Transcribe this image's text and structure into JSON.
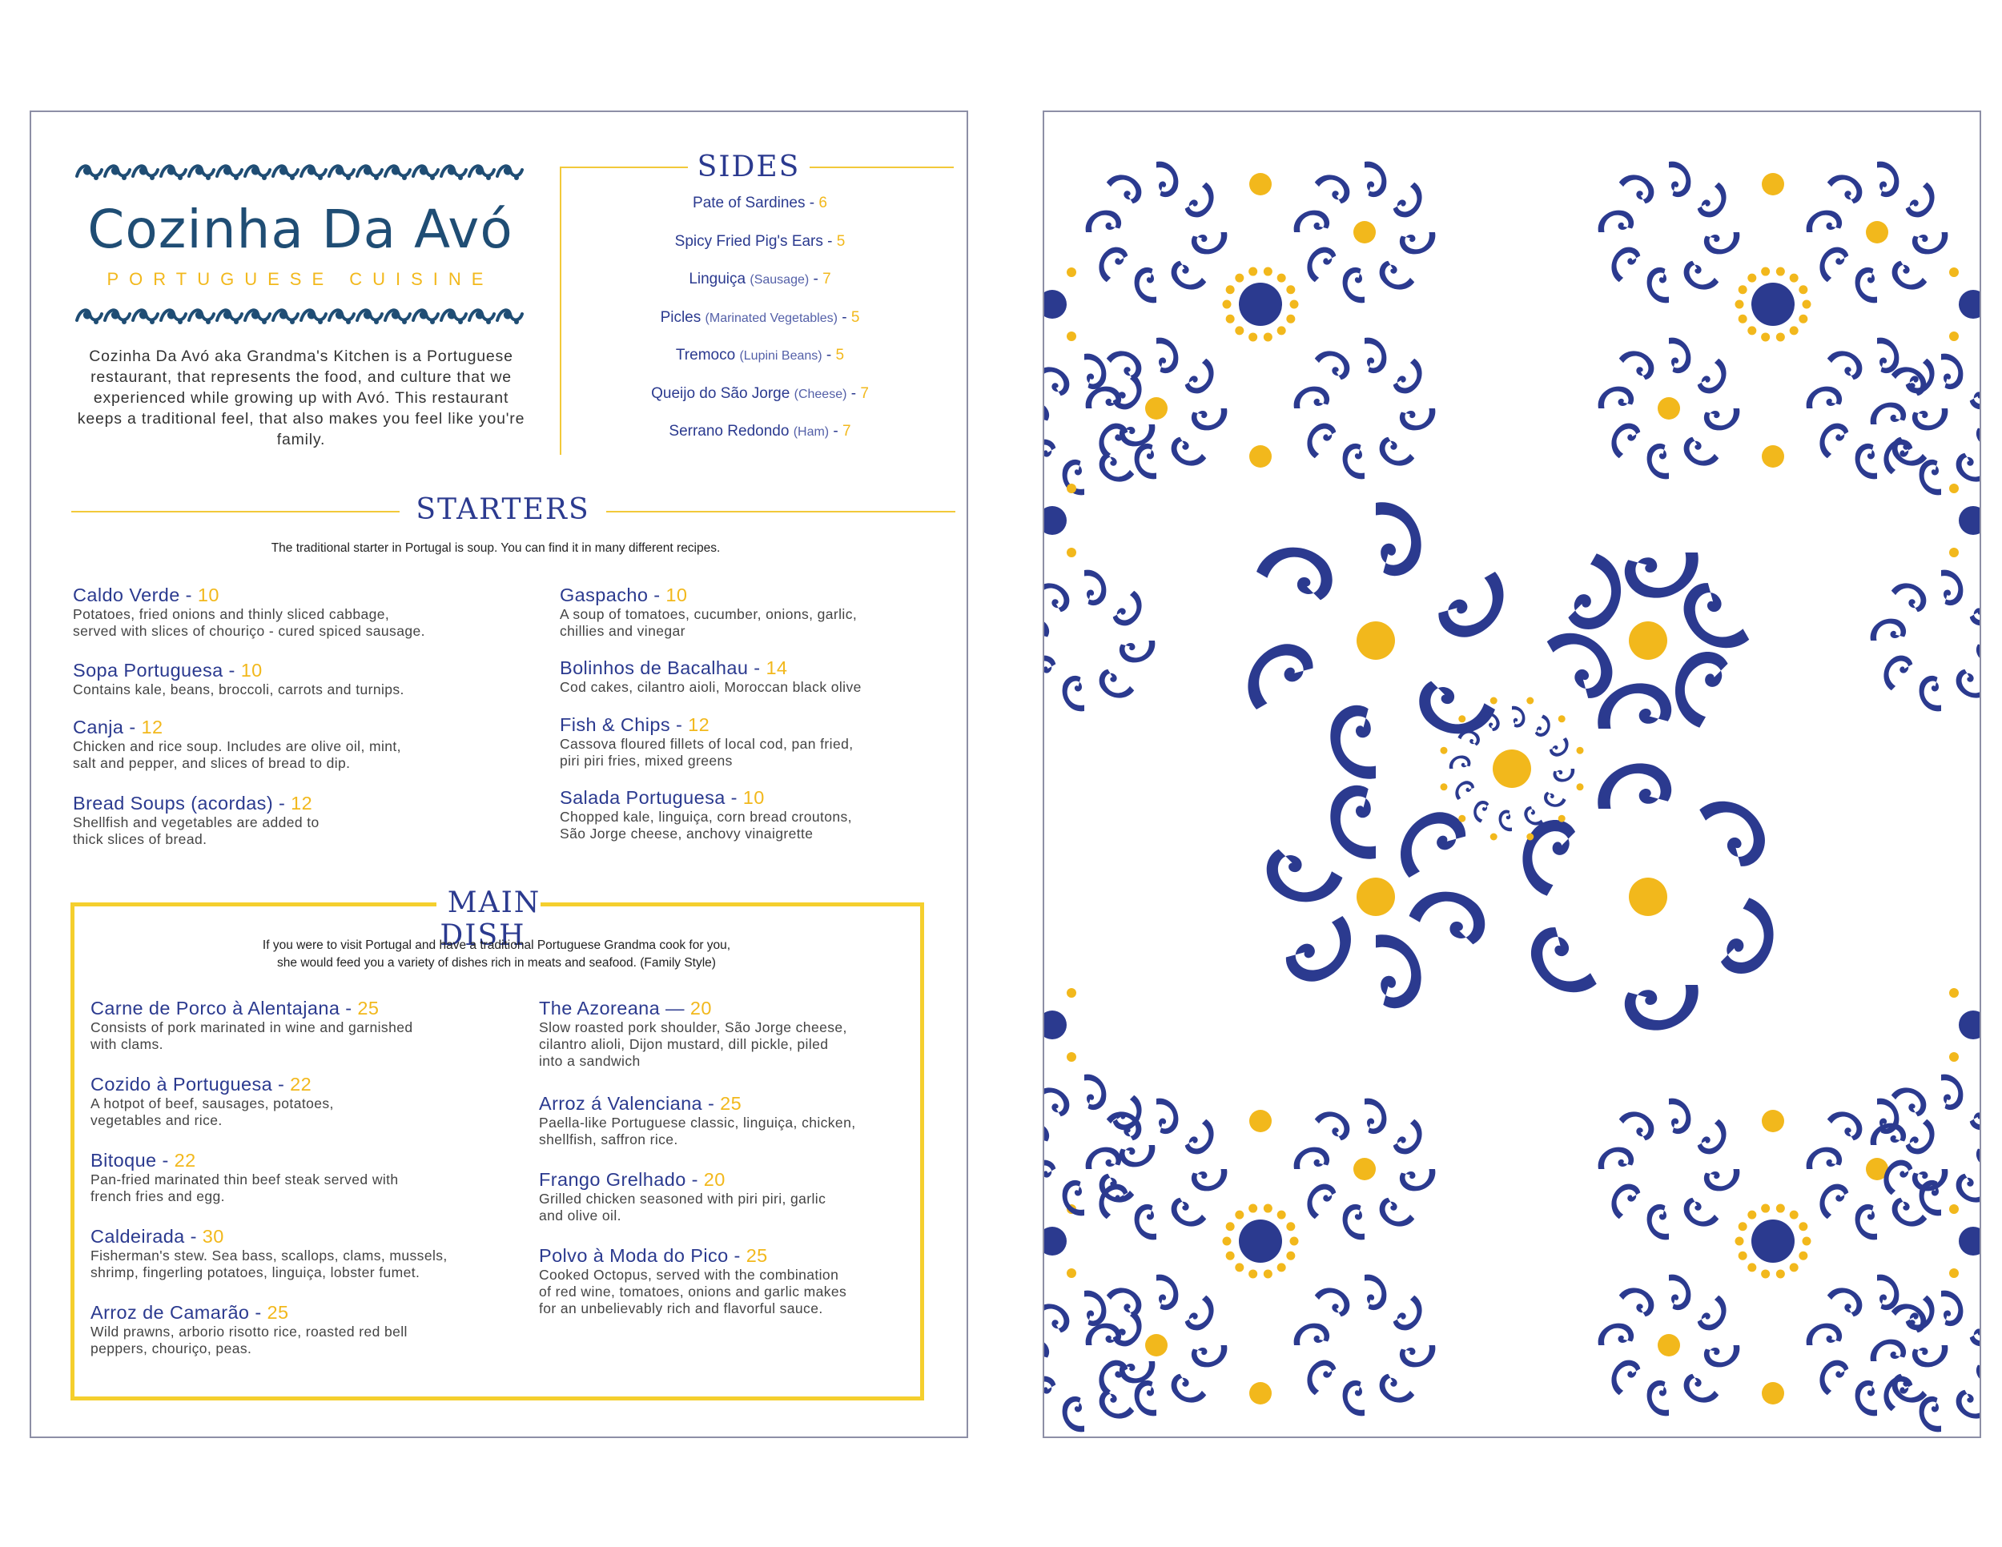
{
  "brand": {
    "title": "Cozinha Da Avó",
    "subtitle": "PORTUGUESE CUISINE",
    "intro": "Cozinha Da Avó aka Grandma's Kitchen is a Portuguese restaurant, that represents the food, and culture that we experienced while growing up with Avó. This restaurant keeps a traditional feel, that also makes you feel like you're family."
  },
  "sides": {
    "title": "SIDES",
    "items": [
      {
        "name": "Pate of Sardines",
        "note": "",
        "price": "6"
      },
      {
        "name": "Spicy Fried Pig's Ears",
        "note": "",
        "price": "5"
      },
      {
        "name": "Linguiça",
        "note": "(Sausage)",
        "price": "7"
      },
      {
        "name": "Picles",
        "note": "(Marinated Vegetables)",
        "price": "5"
      },
      {
        "name": "Tremoco",
        "note": "(Lupini Beans)",
        "price": "5"
      },
      {
        "name": "Queijo do São Jorge",
        "note": "(Cheese)",
        "price": "7"
      },
      {
        "name": "Serrano Redondo",
        "note": "(Ham)",
        "price": "7"
      }
    ]
  },
  "starters": {
    "title": "STARTERS",
    "intro": "The traditional starter in Portugal is soup. You can find it in many different recipes.",
    "left": [
      {
        "name": "Caldo Verde",
        "sep": " - ",
        "price": "10",
        "desc": [
          "Potatoes, fried onions and thinly sliced cabbage,",
          "served with slices of chouriço - cured spiced sausage."
        ]
      },
      {
        "name": "Sopa Portuguesa",
        "sep": " - ",
        "price": "10",
        "desc": [
          "Contains kale, beans, broccoli, carrots and turnips."
        ]
      },
      {
        "name": "Canja",
        "sep": " - ",
        "price": "12",
        "desc": [
          "Chicken and rice soup. Includes are olive oil, mint,",
          "salt and pepper, and slices of bread to dip."
        ]
      },
      {
        "name": "Bread Soups (acordas)",
        "sep": " - ",
        "price": "12",
        "desc": [
          "Shellfish and vegetables are added to",
          "thick slices of bread."
        ]
      }
    ],
    "right": [
      {
        "name": "Gaspacho",
        "sep": " - ",
        "price": "10",
        "desc": [
          "A soup of tomatoes, cucumber, onions, garlic,",
          "chillies and vinegar"
        ]
      },
      {
        "name": "Bolinhos de Bacalhau",
        "sep": " - ",
        "price": "14",
        "desc": [
          "Cod cakes, cilantro aioli, Moroccan black olive"
        ]
      },
      {
        "name": "Fish & Chips",
        "sep": " - ",
        "price": "12",
        "desc": [
          "Cassova floured fillets of local cod, pan fried,",
          "piri piri fries, mixed greens"
        ]
      },
      {
        "name": "Salada Portuguesa",
        "sep": " - ",
        "price": "10",
        "desc": [
          "Chopped kale, linguiça, corn bread croutons,",
          "São Jorge cheese, anchovy vinaigrette"
        ]
      }
    ]
  },
  "main": {
    "title": "MAIN DISH",
    "intro": [
      "If you were to visit Portugal and have a traditional Portuguese Grandma cook for you,",
      "she would feed you a variety of dishes rich in meats and seafood. (Family Style)"
    ],
    "left": [
      {
        "name": "Carne de Porco à Alentajana",
        "sep": " - ",
        "price": "25",
        "desc": [
          "Consists of pork marinated in wine and garnished",
          "with clams."
        ]
      },
      {
        "name": "Cozido à Portuguesa",
        "sep": " - ",
        "price": "22",
        "desc": [
          "A hotpot of beef, sausages, potatoes,",
          "vegetables and rice."
        ]
      },
      {
        "name": "Bitoque",
        "sep": " - ",
        "price": "22",
        "desc": [
          "Pan-fried marinated thin beef steak served with",
          "french fries and egg."
        ]
      },
      {
        "name": "Caldeirada",
        "sep": " - ",
        "price": "30",
        "desc": [
          "Fisherman's stew. Sea bass, scallops, clams, mussels,",
          "shrimp, fingerling potatoes, linguiça, lobster fumet."
        ]
      },
      {
        "name": "Arroz de Camarão",
        "sep": " - ",
        "price": "25",
        "desc": [
          "Wild prawns, arborio risotto rice, roasted red bell",
          "peppers, chouriço, peas."
        ]
      }
    ],
    "right": [
      {
        "name": "The Azoreana",
        "sep": " — ",
        "price": "20",
        "desc": [
          "Slow roasted pork shoulder, São Jorge cheese,",
          "cilantro alioli, Dijon mustard, dill pickle, piled",
          "into a sandwich"
        ]
      },
      {
        "name": "Arroz á Valenciana",
        "sep": " - ",
        "price": "25",
        "desc": [
          "Paella-like Portuguese classic, linguiça, chicken,",
          "shellfish, saffron rice."
        ]
      },
      {
        "name": "Frango Grelhado",
        "sep": " -  ",
        "price": "20",
        "desc": [
          "Grilled chicken seasoned with piri piri, garlic",
          "and olive oil."
        ]
      },
      {
        "name": "Polvo à Moda do Pico",
        "sep": " -  ",
        "price": "25",
        "desc": [
          "Cooked Octopus, served with the combination",
          "of red wine, tomatoes, onions and garlic makes",
          "for an unbelievably rich and flavorful sauce."
        ]
      }
    ]
  },
  "colors": {
    "navy": "#2b3a8f",
    "gold": "#f2b81c",
    "teal_navy": "#1f4d74",
    "page_border": "#8d8fa6"
  },
  "icons": {
    "border_ornament": "wave-scroll-icon",
    "tile_pattern": "azulejo-tile-pattern"
  }
}
